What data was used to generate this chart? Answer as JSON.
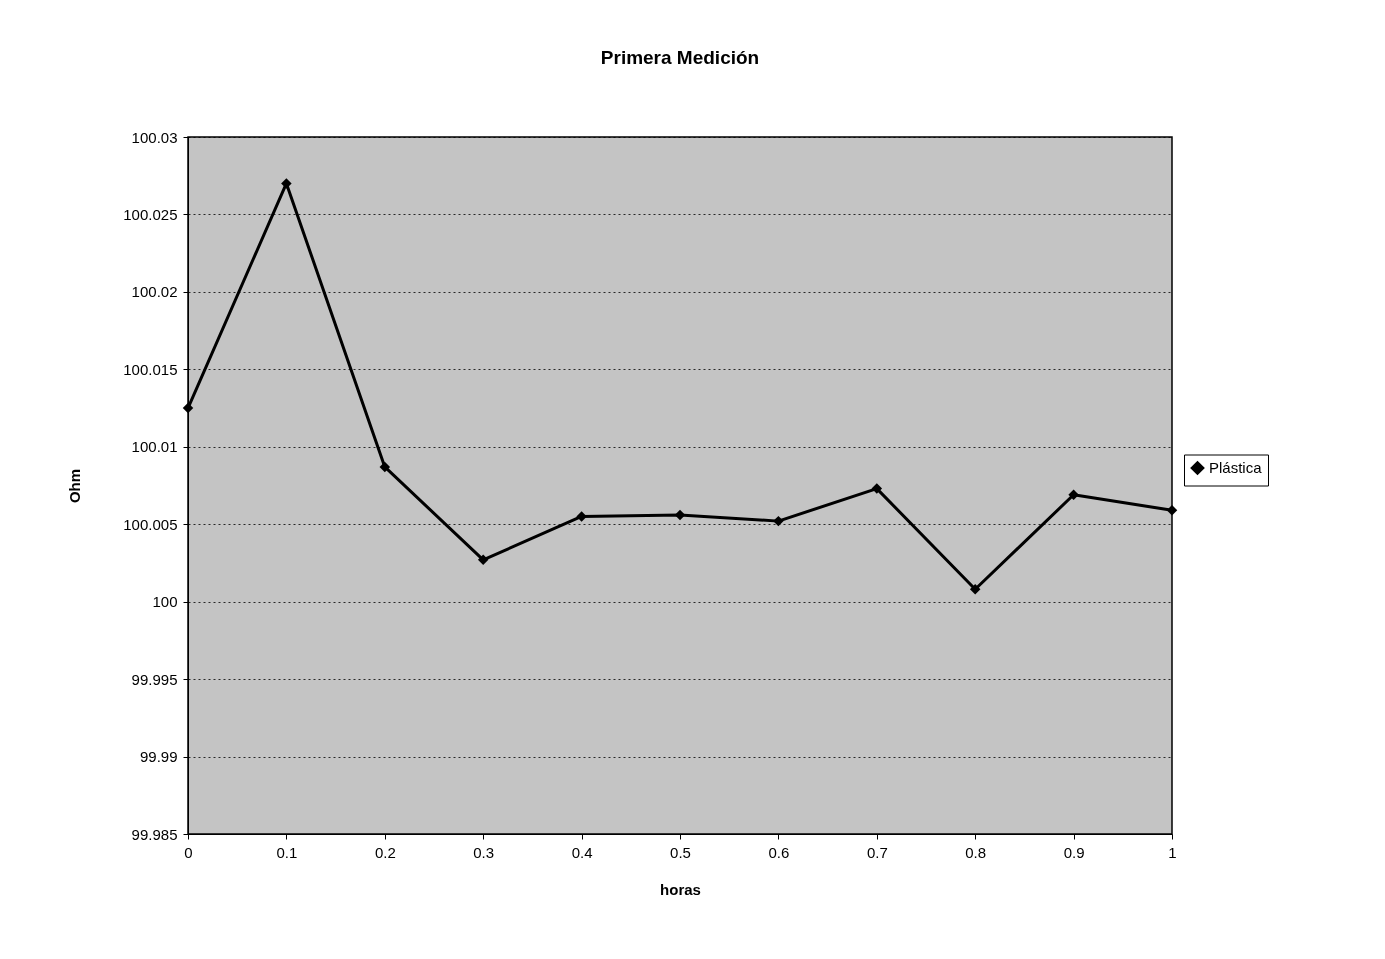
{
  "chart_data": {
    "type": "line",
    "title": "Primera Medición",
    "xlabel": "horas",
    "ylabel": "Ohm",
    "x": [
      0,
      0.1,
      0.2,
      0.3,
      0.4,
      0.5,
      0.6,
      0.7,
      0.8,
      0.9,
      1
    ],
    "series": [
      {
        "name": "Plástica",
        "color": "#000000",
        "values": [
          100.0125,
          100.027,
          100.0087,
          100.0027,
          100.0055,
          100.0056,
          100.0052,
          100.0073,
          100.0008,
          100.0069,
          100.0059
        ]
      }
    ],
    "xlim": [
      0,
      1
    ],
    "xticks": [
      0,
      0.1,
      0.2,
      0.3,
      0.4,
      0.5,
      0.6,
      0.7,
      0.8,
      0.9,
      1
    ],
    "ylim": [
      99.985,
      100.03
    ],
    "yticks": [
      99.985,
      99.99,
      99.995,
      100,
      100.005,
      100.01,
      100.015,
      100.02,
      100.025,
      100.03
    ],
    "grid": "y",
    "legend": "right",
    "marker": "diamond",
    "line_style": "solid"
  }
}
